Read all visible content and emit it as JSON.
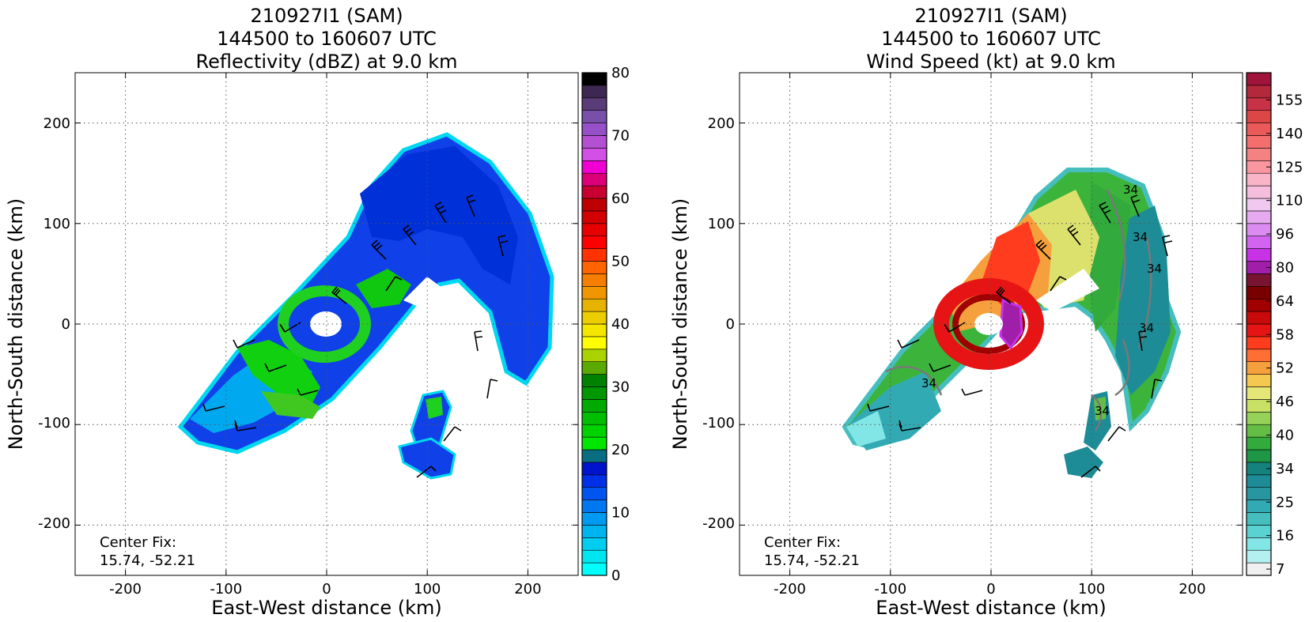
{
  "chart_data": [
    {
      "type": "heatmap",
      "title_lines": [
        "210927I1 (SAM)",
        "144500 to 160607 UTC",
        "Reflectivity (dBZ) at 9.0 km"
      ],
      "xlabel": "East-West distance (km)",
      "ylabel": "North-South distance (km)",
      "xlim": [
        -250,
        250
      ],
      "ylim": [
        -250,
        250
      ],
      "xticks": [
        -200,
        -100,
        0,
        100,
        200
      ],
      "yticks": [
        -200,
        -100,
        0,
        100,
        200
      ],
      "grid": true,
      "annotation_lines": [
        "Center Fix:",
        "15.74, -52.21"
      ],
      "colorbar": {
        "label_values": [
          0,
          10,
          20,
          30,
          40,
          50,
          60,
          70,
          80
        ],
        "vmin": 0,
        "vmax": 80,
        "colors": [
          "#00ffff",
          "#00e6f0",
          "#00cdf0",
          "#00b4f0",
          "#009bf0",
          "#0078f0",
          "#0055f0",
          "#0030e6",
          "#0014cd",
          "#0a6e82",
          "#00e600",
          "#00d200",
          "#00be00",
          "#00aa00",
          "#009600",
          "#008200",
          "#5aaa00",
          "#aad200",
          "#ffff00",
          "#f5e600",
          "#ebcd00",
          "#e6b400",
          "#f09600",
          "#f57d00",
          "#ff6400",
          "#ff3200",
          "#ff0000",
          "#e60000",
          "#d20000",
          "#be0000",
          "#c80032",
          "#dc0078",
          "#f000d2",
          "#d250e6",
          "#b450d2",
          "#9650c8",
          "#7850aa",
          "#5a3c78",
          "#3c2850",
          "#000000"
        ]
      }
    },
    {
      "type": "heatmap",
      "title_lines": [
        "210927I1 (SAM)",
        "144500 to 160607 UTC",
        "Wind Speed (kt) at 9.0 km"
      ],
      "xlabel": "East-West distance (km)",
      "ylabel": "North-South distance (km)",
      "xlim": [
        -250,
        250
      ],
      "ylim": [
        -250,
        250
      ],
      "xticks": [
        -200,
        -100,
        0,
        100,
        200
      ],
      "yticks": [
        -200,
        -100,
        0,
        100,
        200
      ],
      "grid": true,
      "annotation_lines": [
        "Center Fix:",
        "15.74, -52.21"
      ],
      "contour_labels": [
        "34",
        "34",
        "34",
        "34",
        "34",
        "34"
      ],
      "colorbar": {
        "label_values": [
          7,
          16,
          25,
          34,
          40,
          46,
          52,
          58,
          64,
          80,
          96,
          110,
          125,
          140,
          155
        ],
        "colors": [
          "#f0f0f0",
          "#b4f0f0",
          "#82e6e6",
          "#5ad2d2",
          "#46bebe",
          "#32aab4",
          "#2896a0",
          "#1e8c96",
          "#14827d",
          "#1e9646",
          "#32aa3c",
          "#64be46",
          "#96d25a",
          "#c8e164",
          "#e6e678",
          "#f5c850",
          "#f5a03c",
          "#ff6e32",
          "#ff3c1e",
          "#e61414",
          "#c80a0a",
          "#a00000",
          "#780000",
          "#781432",
          "#a01eaa",
          "#c832e6",
          "#d264f0",
          "#dc8cf0",
          "#e6aaf0",
          "#f0c8f0",
          "#f5bedc",
          "#fab4c8",
          "#fa96a0",
          "#f58282",
          "#f56e6e",
          "#eb5a5a",
          "#dc4646",
          "#c83246",
          "#b4283c",
          "#a0143c"
        ]
      }
    }
  ]
}
